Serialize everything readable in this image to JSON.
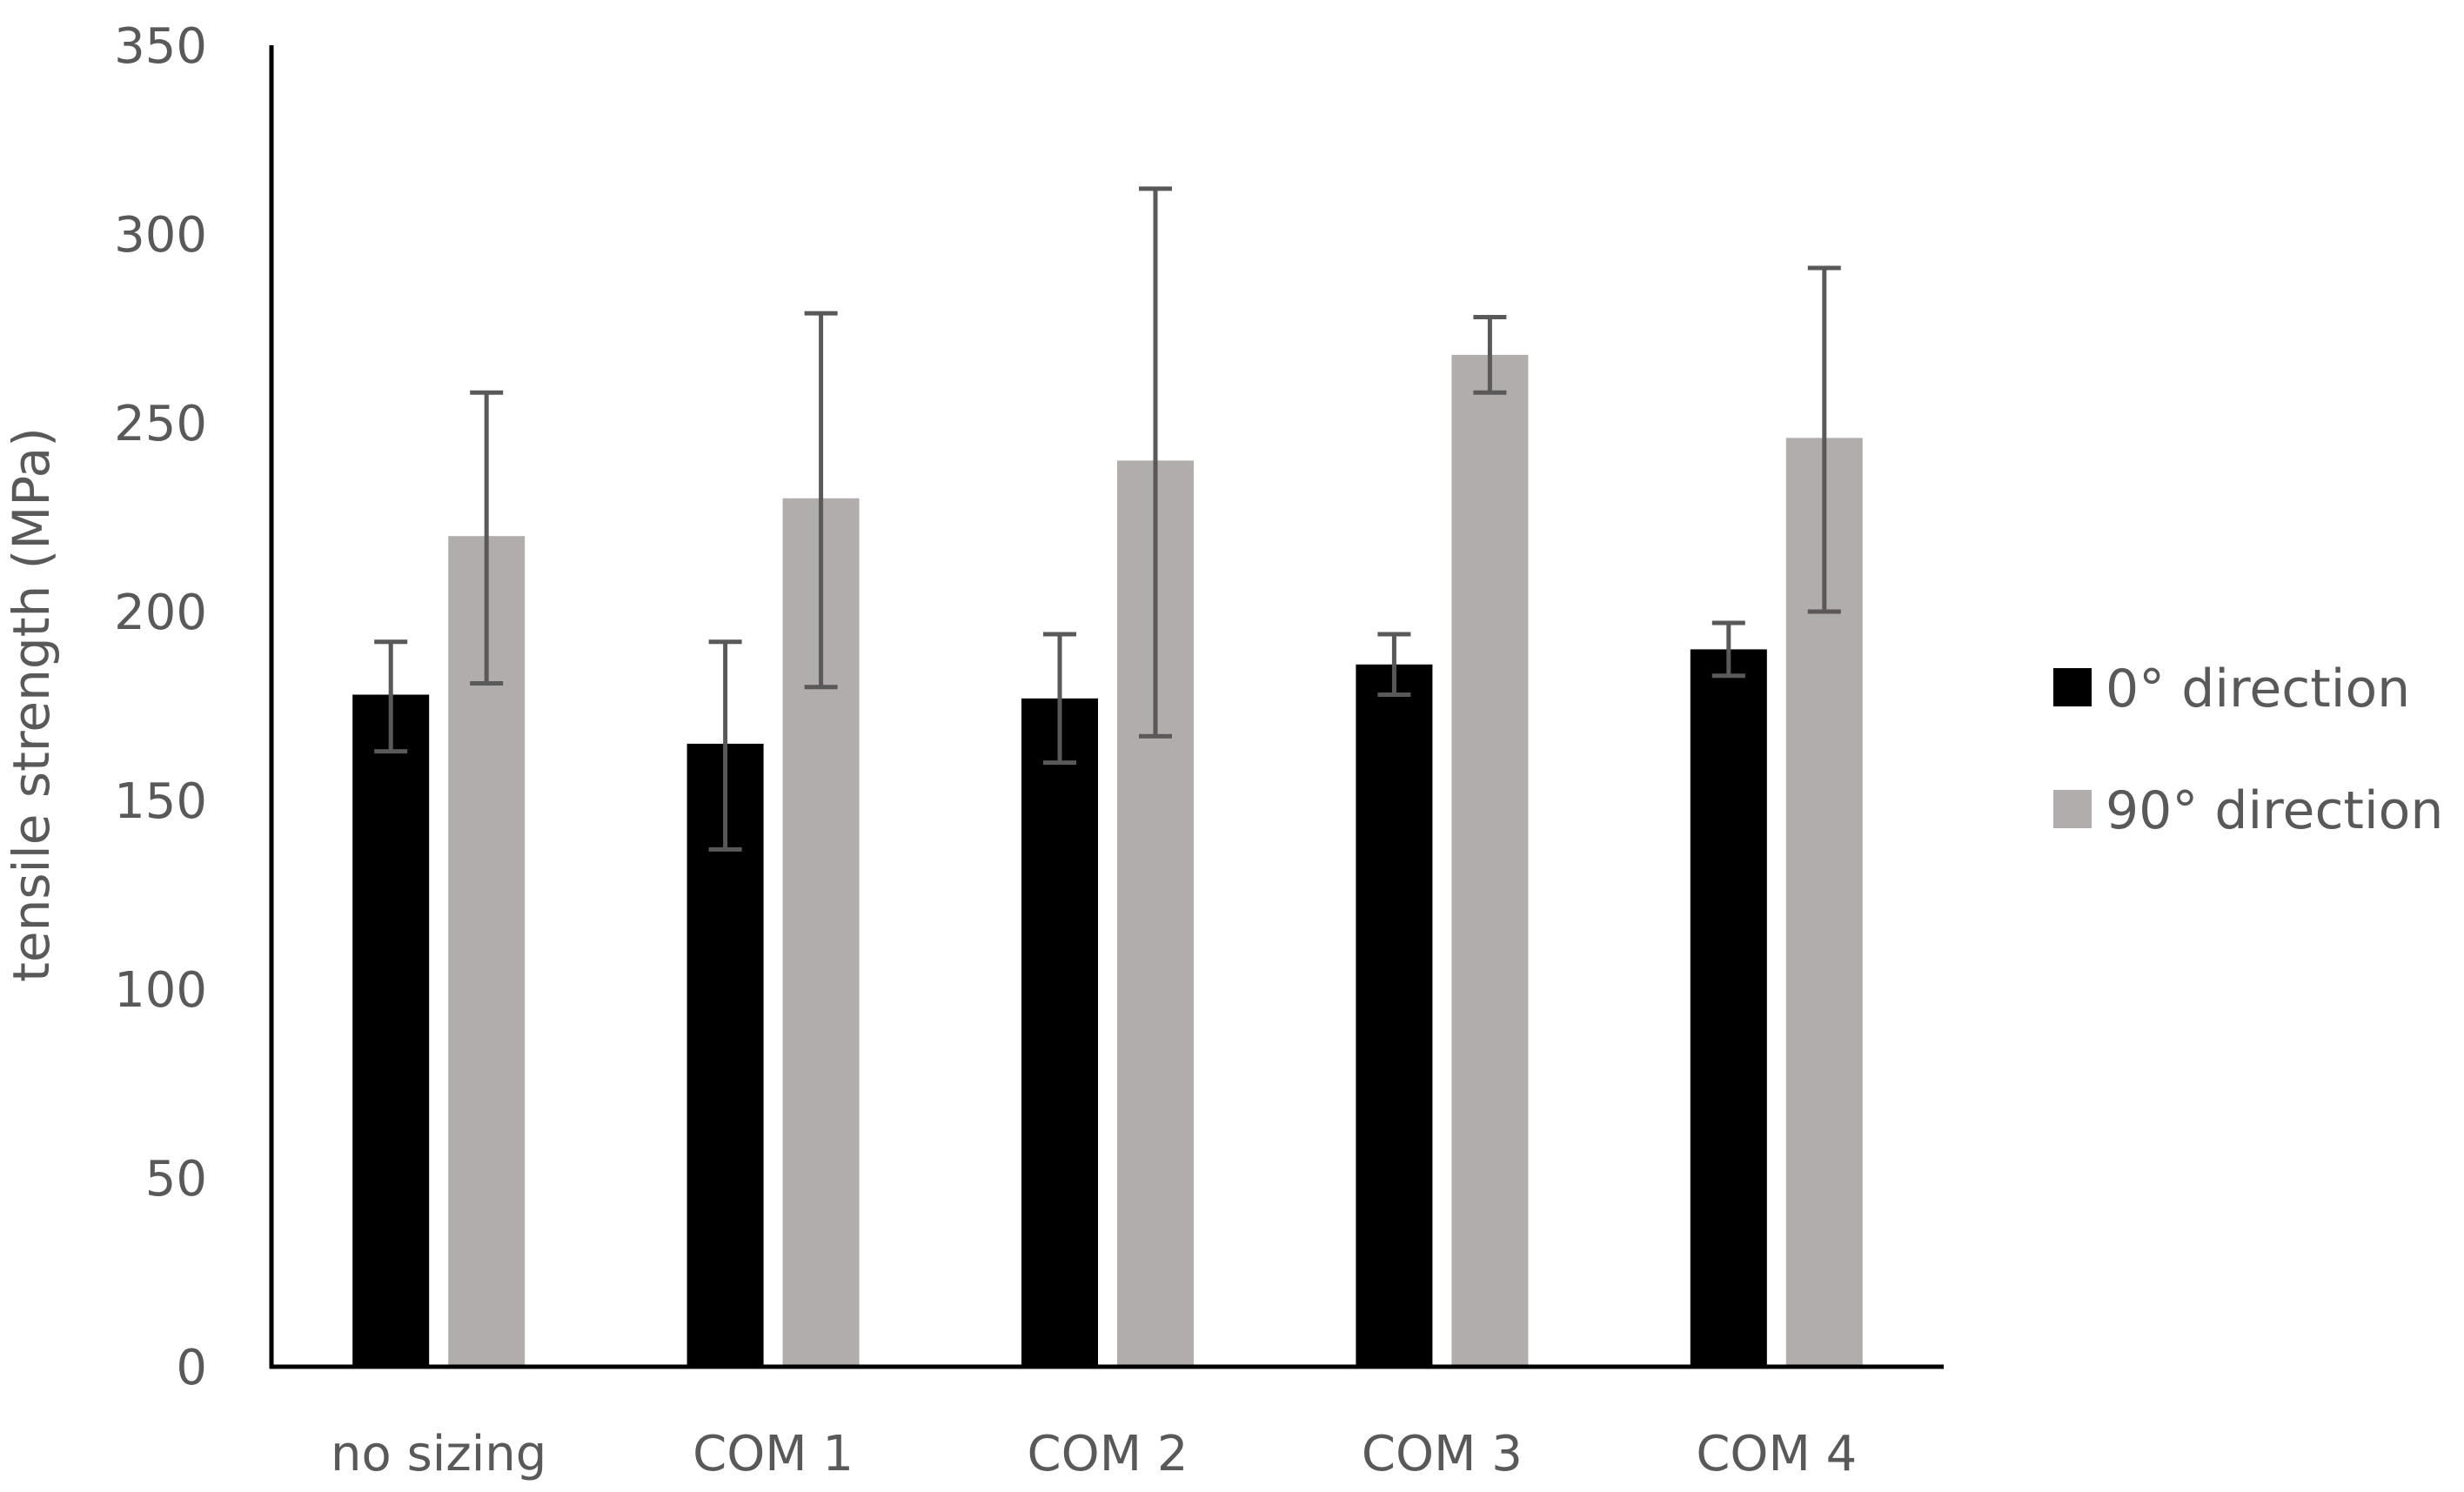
{
  "chart_data": {
    "type": "bar",
    "title": "",
    "xlabel": "",
    "ylabel": "tensile strength (MPa)",
    "ylim": [
      0,
      350
    ],
    "yticks": [
      0,
      50,
      100,
      150,
      200,
      250,
      300,
      350
    ],
    "grid": false,
    "legend_position": "right",
    "categories": [
      "no sizing",
      "COM 1",
      "COM 2",
      "COM 3",
      "COM 4"
    ],
    "series": [
      {
        "name": "0° direction",
        "color": "#000000",
        "values": [
          178,
          165,
          177,
          186,
          190
        ],
        "error_low": [
          163,
          137,
          160,
          178,
          183
        ],
        "error_high": [
          192,
          192,
          194,
          194,
          197
        ]
      },
      {
        "name": "90° direction",
        "color": "#b0adac",
        "values": [
          220,
          230,
          240,
          268,
          246
        ],
        "error_low": [
          181,
          180,
          167,
          258,
          200
        ],
        "error_high": [
          258,
          279,
          312,
          278,
          291
        ]
      }
    ],
    "error_bar_color": "#595959"
  }
}
